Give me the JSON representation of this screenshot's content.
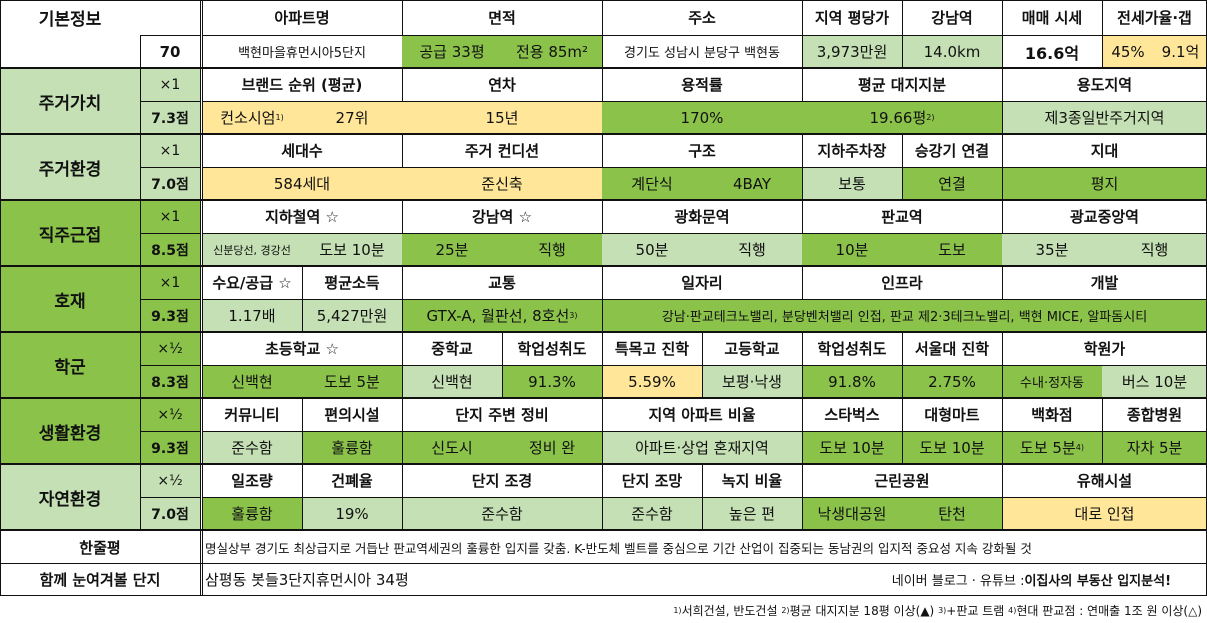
{
  "basic": {
    "label": "기본정보",
    "rank": "70",
    "headers": [
      "아파트명",
      "면적",
      "주소",
      "지역 평당가",
      "강남역",
      "매매 시세",
      "전세가율·갭"
    ],
    "apt_name": "백현마을휴먼시아5단지",
    "area_supply": "공급 33평",
    "area_exclusive": "전용 85m²",
    "address": "경기도 성남시 분당구 백현동",
    "region_price": "3,973만원",
    "gangnam_dist": "14.0km",
    "sale_price": "16.6억",
    "jeonse_rate": "45%",
    "gap": "9.1억"
  },
  "sections": {
    "residence_value": {
      "label": "주거가치",
      "mult": "×1",
      "score": "7.3점",
      "headers": [
        "브랜드 순위 (평균)",
        "연차",
        "용적률",
        "평균 대지지분",
        "용도지역"
      ],
      "brand": "컨소시엄",
      "brand_note": "1)",
      "brand_rank": "27위",
      "age": "15년",
      "far": "170%",
      "land_share": "19.66평",
      "land_note": "2)",
      "zone": "제3종일반주거지역"
    },
    "residence_env": {
      "label": "주거환경",
      "mult": "×1",
      "score": "7.0점",
      "headers": [
        "세대수",
        "주거 컨디션",
        "구조",
        "지하주차장",
        "승강기 연결",
        "지대"
      ],
      "households": "584세대",
      "condition": "준신축",
      "structure_a": "계단식",
      "structure_b": "4BAY",
      "parking": "보통",
      "elevator": "연결",
      "terrain": "평지"
    },
    "commute": {
      "label": "직주근접",
      "mult": "×1",
      "score": "8.5점",
      "headers": [
        "지하철역 ☆",
        "강남역 ☆",
        "광화문역",
        "판교역",
        "광교중앙역"
      ],
      "subway_lines": "신분당선, 경강선",
      "subway_walk": "도보 10분",
      "gangnam_time": "25분",
      "gangnam_mode": "직행",
      "gwanghwamun_time": "50분",
      "gwanghwamun_mode": "직행",
      "pangyo_time": "10분",
      "pangyo_mode": "도보",
      "gwanggyo_time": "35분",
      "gwanggyo_mode": "직행"
    },
    "development": {
      "label": "호재",
      "mult": "×1",
      "score": "9.3점",
      "headers": [
        "수요/공급 ☆",
        "평균소득",
        "교통",
        "일자리",
        "인프라",
        "개발"
      ],
      "supply_demand": "1.17배",
      "income": "5,427만원",
      "transport": "GTX-A, 월판선, 8호선",
      "transport_note": "3)",
      "dev_text": "강남·판교테크노밸리, 분당벤처밸리 인접, 판교 제2·3테크노밸리, 백현 MICE, 알파돔시티"
    },
    "school": {
      "label": "학군",
      "mult": "×½",
      "score": "8.3점",
      "headers": [
        "초등학교 ☆",
        "중학교",
        "학업성취도",
        "특목고 진학",
        "고등학교",
        "학업성취도",
        "서울대 진학",
        "학원가"
      ],
      "elementary": "신백현",
      "elementary_walk": "도보 5분",
      "middle": "신백현",
      "middle_score": "91.3%",
      "special_hs": "5.59%",
      "high": "보평·낙생",
      "high_score": "91.8%",
      "snu": "2.75%",
      "academy_area": "수내·정자동",
      "academy_time": "버스 10분"
    },
    "living_env": {
      "label": "생활환경",
      "mult": "×½",
      "score": "9.3점",
      "headers": [
        "커뮤니티",
        "편의시설",
        "단지 주변 정비",
        "지역 아파트 비율",
        "스타벅스",
        "대형마트",
        "백화점",
        "종합병원"
      ],
      "community": "준수함",
      "convenience": "훌륭함",
      "redev_a": "신도시",
      "redev_b": "정비 완",
      "apt_ratio": "아파트·상업 혼재지역",
      "starbucks": "도보 10분",
      "mart": "도보 10분",
      "dept_store": "도보 5분",
      "dept_note": "4)",
      "hospital": "자차 5분"
    },
    "nature_env": {
      "label": "자연환경",
      "mult": "×½",
      "score": "7.0점",
      "headers": [
        "일조량",
        "건폐율",
        "단지 조경",
        "단지 조망",
        "녹지 비율",
        "근린공원",
        "유해시설"
      ],
      "sunlight": "훌륭함",
      "bcr": "19%",
      "landscape": "준수함",
      "view": "준수함",
      "green": "높은 편",
      "park_name": "낙생대공원",
      "park_b": "탄천",
      "hazard": "대로 인접"
    }
  },
  "summary": {
    "label": "한줄평",
    "text": "명실상부 경기도 최상급지로 거듭난 판교역세권의 훌륭한 입지를 갖춤. K-반도체 벨트를 중심으로 기간 산업이 집중되는 동남권의 입지적 중요성 지속 강화될 것"
  },
  "related": {
    "label": "함께 눈여겨볼 단지",
    "text": "삼평동 봇들3단지휴먼시아 34평",
    "credit_prefix": "네이버 블로그 · 유튜브 : ",
    "credit_bold": "이집사의 부동산 입지분석!"
  },
  "footnotes": {
    "n1": "1)",
    "t1": "서희건설, 반도건설",
    "n2": "2)",
    "t2": "평균 대지지분 18평 이상(▲)",
    "n3": "3)",
    "t3": "+판교 트램",
    "n4": "4)",
    "t4": "현대 판교점 : 연매출 1조 원 이상(△)"
  },
  "colors": {
    "light_green": "#c5e0b4",
    "dark_green": "#8bc34a",
    "yellow": "#ffe699",
    "border": "#111111"
  }
}
